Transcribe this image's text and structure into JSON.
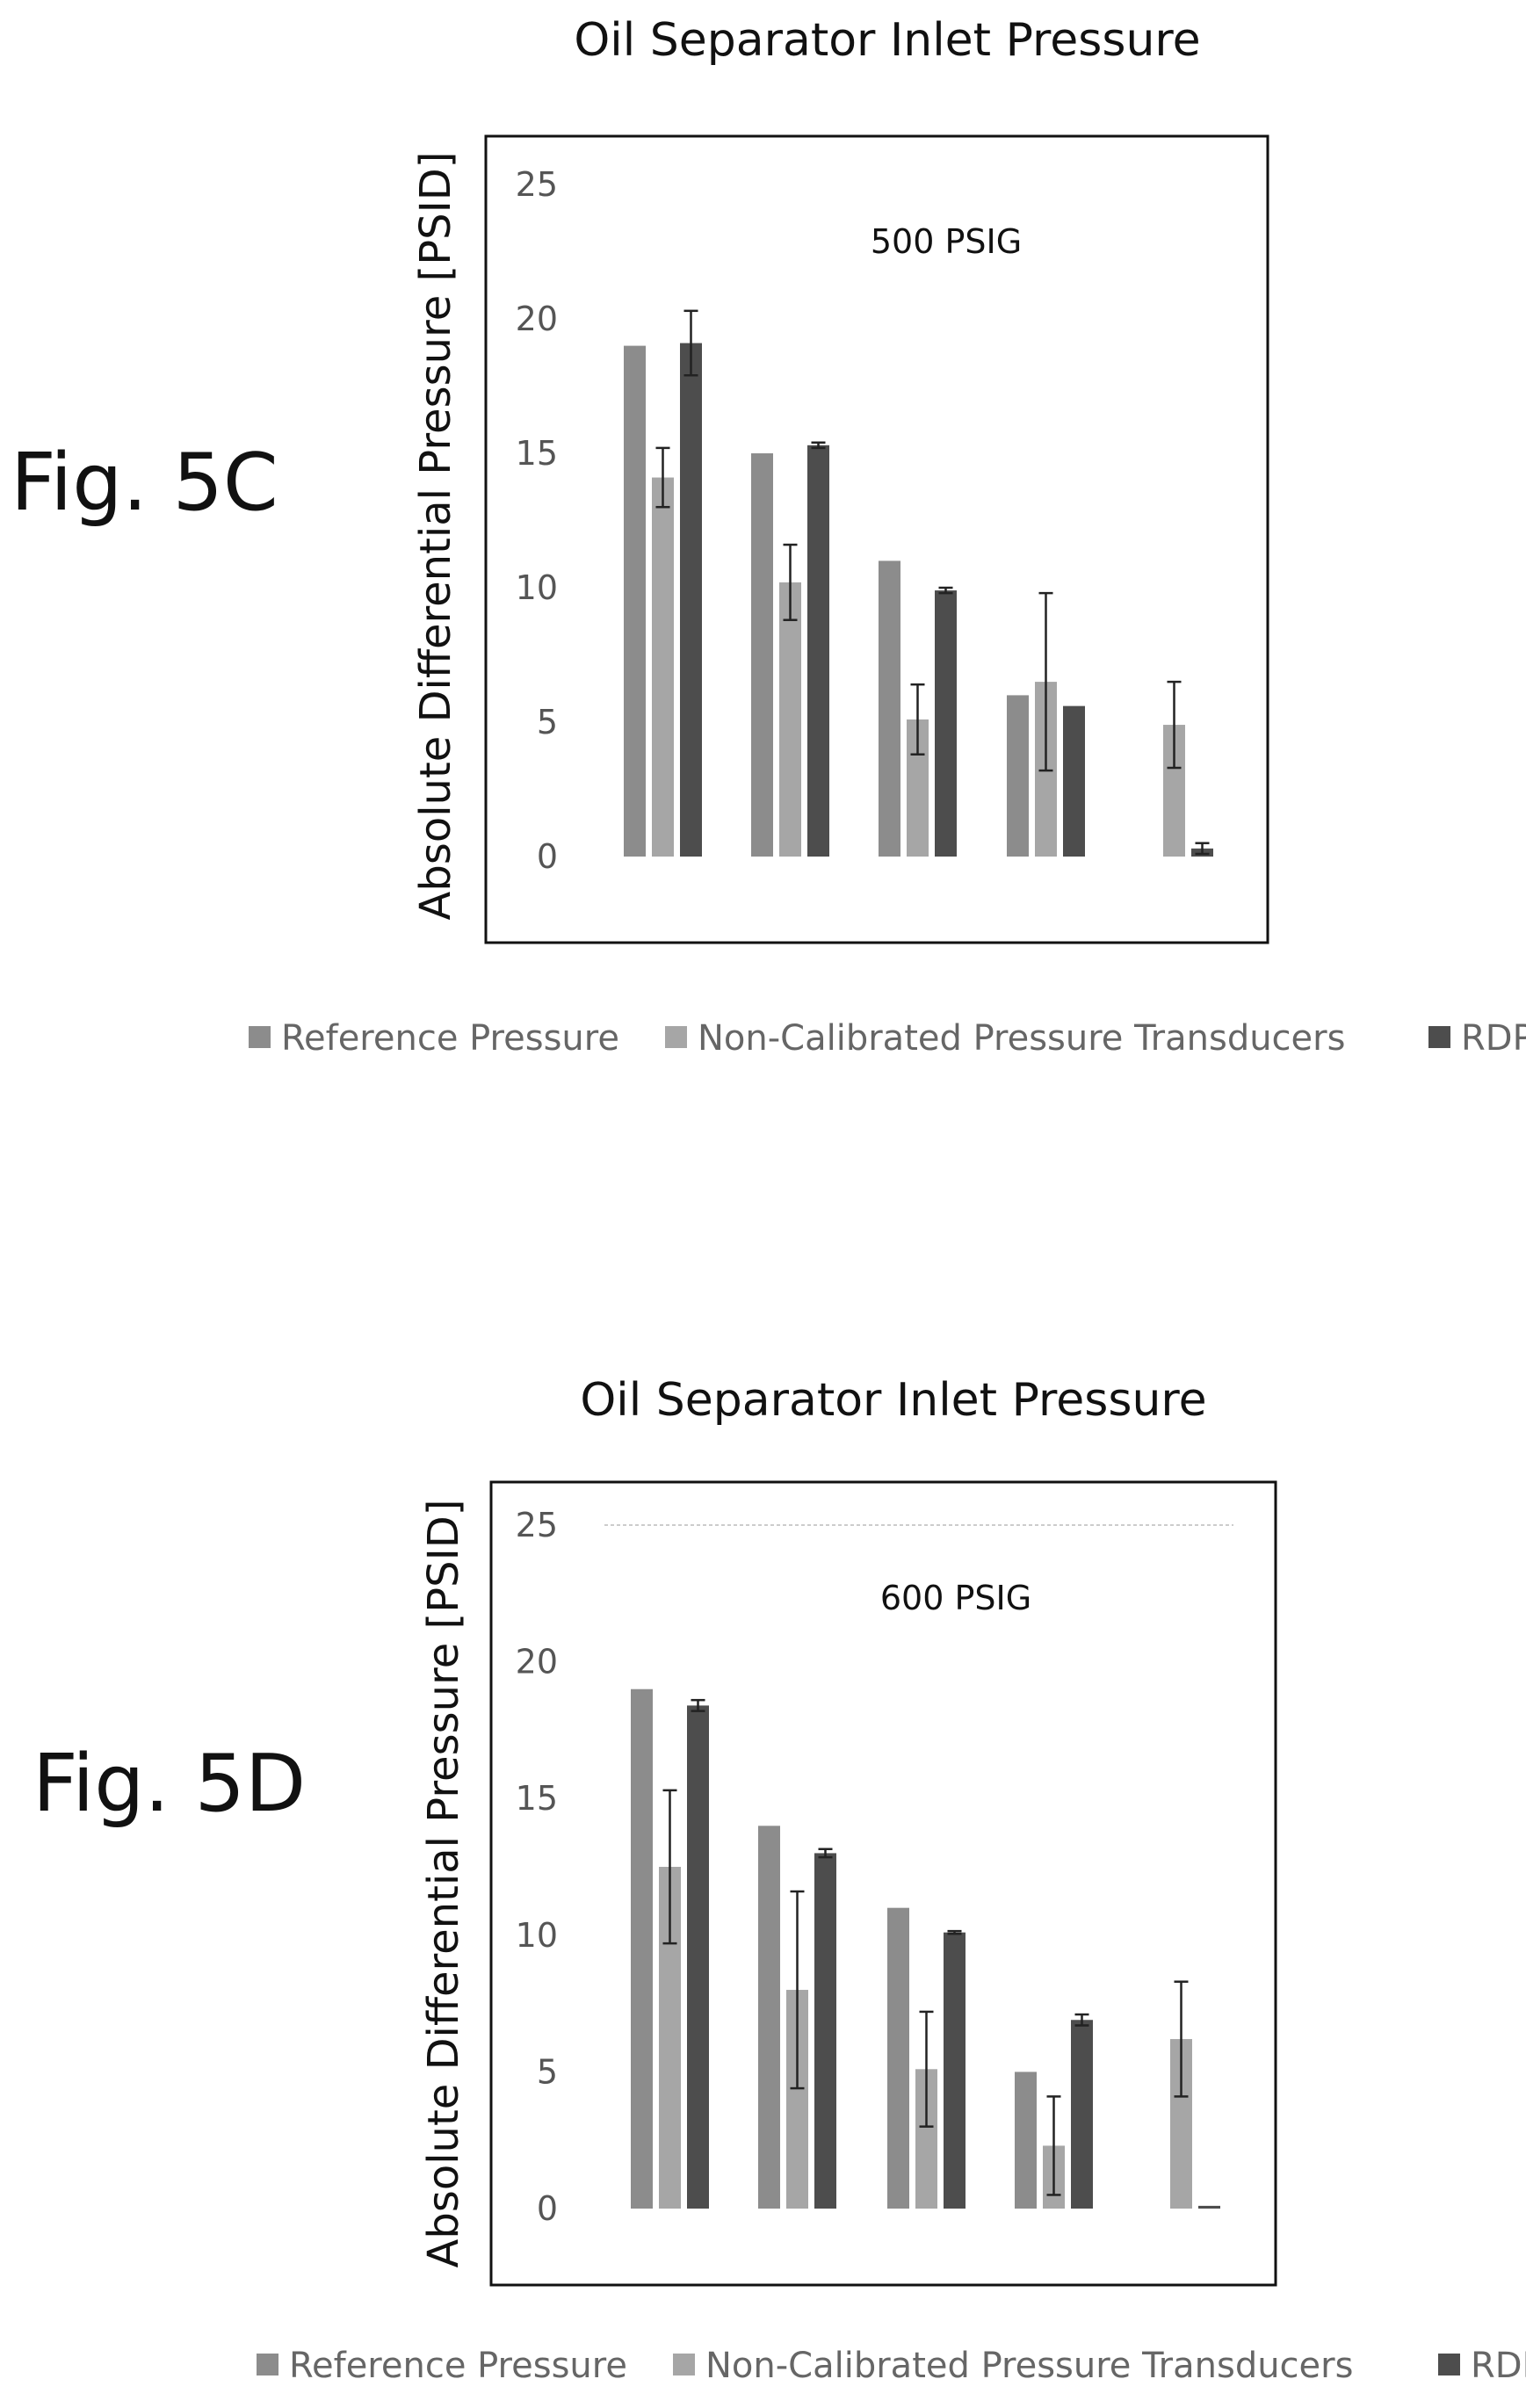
{
  "chart_data": [
    {
      "type": "bar",
      "figure_label": "Fig. 5C",
      "title": "Oil Separator Inlet Pressure",
      "xlabel": "",
      "ylabel": "Absolute Differential Pressure [PSID]",
      "annotation": "500 PSIG",
      "ylim": [
        0,
        25
      ],
      "yticks": [
        "0",
        "5",
        "10",
        "15",
        "20",
        "25"
      ],
      "grid": false,
      "legend_position": "bottom",
      "categories": [
        "",
        "",
        "",
        "",
        ""
      ],
      "series": [
        {
          "name": "Reference Pressure",
          "color": "#8c8c8c",
          "values": [
            19,
            15,
            11,
            6,
            0
          ],
          "errors": [
            0,
            0,
            0,
            0,
            0
          ]
        },
        {
          "name": "Non-Calibrated Pressure Transducers",
          "color": "#a6a6a6",
          "values": [
            14.1,
            10.2,
            5.1,
            6.5,
            4.9
          ],
          "errors": [
            1.1,
            1.4,
            1.3,
            3.3,
            1.6
          ]
        },
        {
          "name": "RDP",
          "color": "#4d4d4d",
          "values": [
            19.1,
            15.3,
            9.9,
            5.6,
            0.3
          ],
          "errors": [
            1.2,
            0.1,
            0.1,
            0,
            0.2
          ]
        }
      ]
    },
    {
      "type": "bar",
      "figure_label": "Fig. 5D",
      "title": "Oil Separator Inlet Pressure",
      "xlabel": "",
      "ylabel": "Absolute Differential Pressure [PSID]",
      "annotation": "600 PSIG",
      "ylim": [
        0,
        25
      ],
      "yticks": [
        "0",
        "5",
        "10",
        "15",
        "20",
        "25"
      ],
      "grid": false,
      "legend_position": "bottom",
      "categories": [
        "",
        "",
        "",
        "",
        ""
      ],
      "series": [
        {
          "name": "Reference Pressure",
          "color": "#8c8c8c",
          "values": [
            19,
            14,
            11,
            5,
            0
          ],
          "errors": [
            0,
            0,
            0,
            0,
            0
          ]
        },
        {
          "name": "Non-Calibrated Pressure Transducers",
          "color": "#a6a6a6",
          "values": [
            12.5,
            8.0,
            5.1,
            2.3,
            6.2
          ],
          "errors": [
            2.8,
            3.6,
            2.1,
            1.8,
            2.1
          ]
        },
        {
          "name": "RDP",
          "color": "#4d4d4d",
          "values": [
            18.4,
            13.0,
            10.1,
            6.9,
            0.1
          ],
          "errors": [
            0.2,
            0.15,
            0.05,
            0.2,
            0
          ]
        }
      ]
    }
  ]
}
